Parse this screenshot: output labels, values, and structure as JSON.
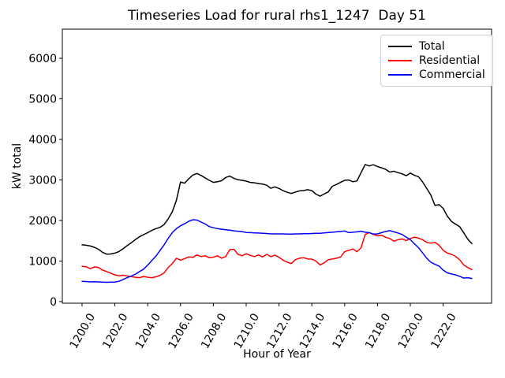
{
  "chart_data": {
    "type": "line",
    "title": "Timeseries Load for rural rhs1_1247  Day 51",
    "xlabel": "Hour of Year",
    "ylabel": "kW total",
    "xlim": [
      1198.8,
      1224.95
    ],
    "ylim": [
      -40,
      6720
    ],
    "grid": false,
    "legend_position": "upper right",
    "frame_color": "#000000",
    "background_color": "#ffffff",
    "xticks": [
      1200.0,
      1202.0,
      1204.0,
      1206.0,
      1208.0,
      1210.0,
      1212.0,
      1214.0,
      1216.0,
      1218.0,
      1220.0,
      1222.0
    ],
    "xtick_labels": [
      "1200.0",
      "1202.0",
      "1204.0",
      "1206.0",
      "1208.0",
      "1210.0",
      "1212.0",
      "1214.0",
      "1216.0",
      "1218.0",
      "1220.0",
      "1222.0"
    ],
    "yticks": [
      0,
      1000,
      2000,
      3000,
      4000,
      5000,
      6000
    ],
    "ytick_labels": [
      "0",
      "1000",
      "2000",
      "3000",
      "4000",
      "5000",
      "6000"
    ],
    "x_start": 1200.0,
    "x_step": 0.25,
    "series": [
      {
        "name": "Total",
        "color": "#000000",
        "values": [
          1400,
          1390,
          1370,
          1340,
          1290,
          1215,
          1170,
          1175,
          1195,
          1235,
          1305,
          1380,
          1450,
          1530,
          1600,
          1650,
          1700,
          1755,
          1800,
          1830,
          1900,
          2040,
          2220,
          2500,
          2950,
          2920,
          3030,
          3120,
          3160,
          3110,
          3050,
          2990,
          2940,
          2955,
          2980,
          3060,
          3095,
          3040,
          3005,
          2990,
          2970,
          2940,
          2930,
          2910,
          2900,
          2870,
          2795,
          2830,
          2790,
          2735,
          2695,
          2665,
          2700,
          2730,
          2740,
          2760,
          2735,
          2650,
          2600,
          2655,
          2705,
          2845,
          2890,
          2940,
          2990,
          3000,
          2955,
          2975,
          3180,
          3380,
          3345,
          3375,
          3330,
          3300,
          3260,
          3195,
          3215,
          3180,
          3150,
          3105,
          3170,
          3115,
          3080,
          2950,
          2790,
          2630,
          2370,
          2390,
          2300,
          2110,
          1980,
          1910,
          1850,
          1700,
          1540,
          1430
        ]
      },
      {
        "name": "Residential",
        "color": "#ff0000",
        "values": [
          870,
          860,
          810,
          855,
          840,
          775,
          740,
          700,
          660,
          635,
          650,
          630,
          615,
          600,
          590,
          620,
          600,
          590,
          610,
          645,
          710,
          840,
          940,
          1070,
          1020,
          1060,
          1100,
          1090,
          1150,
          1110,
          1130,
          1080,
          1095,
          1130,
          1070,
          1110,
          1280,
          1290,
          1165,
          1130,
          1180,
          1140,
          1110,
          1150,
          1100,
          1165,
          1110,
          1145,
          1090,
          1020,
          970,
          940,
          1035,
          1070,
          1080,
          1050,
          1045,
          1000,
          905,
          955,
          1035,
          1050,
          1070,
          1100,
          1230,
          1265,
          1295,
          1230,
          1330,
          1655,
          1700,
          1655,
          1620,
          1635,
          1585,
          1555,
          1490,
          1525,
          1545,
          1505,
          1555,
          1590,
          1565,
          1525,
          1460,
          1440,
          1460,
          1390,
          1265,
          1195,
          1165,
          1115,
          1035,
          905,
          840,
          790
        ]
      },
      {
        "name": "Commercial",
        "color": "#0000ff",
        "values": [
          500,
          495,
          485,
          490,
          485,
          480,
          475,
          480,
          480,
          500,
          545,
          590,
          630,
          675,
          740,
          800,
          900,
          1010,
          1120,
          1260,
          1400,
          1560,
          1700,
          1800,
          1870,
          1920,
          1980,
          2020,
          2010,
          1960,
          1915,
          1850,
          1820,
          1800,
          1785,
          1770,
          1760,
          1745,
          1735,
          1725,
          1705,
          1700,
          1695,
          1690,
          1685,
          1680,
          1670,
          1670,
          1670,
          1670,
          1665,
          1665,
          1670,
          1670,
          1675,
          1675,
          1680,
          1685,
          1685,
          1695,
          1705,
          1710,
          1720,
          1730,
          1740,
          1700,
          1710,
          1720,
          1735,
          1710,
          1700,
          1665,
          1670,
          1700,
          1730,
          1750,
          1720,
          1690,
          1655,
          1590,
          1525,
          1425,
          1330,
          1200,
          1070,
          970,
          920,
          875,
          775,
          710,
          680,
          660,
          625,
          580,
          590,
          570
        ]
      }
    ]
  }
}
